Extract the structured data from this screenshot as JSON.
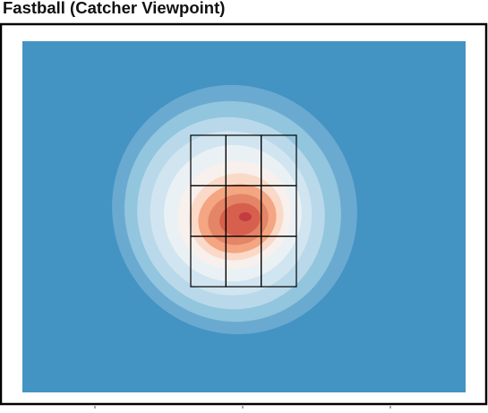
{
  "chart_data": {
    "type": "heatmap",
    "title": "Fastball (Catcher Viewpoint)",
    "subtitle": "",
    "xlabel": "",
    "ylabel": "",
    "legend": "none",
    "grid": false,
    "strike_zone": {
      "rows": 3,
      "cols": 3
    },
    "density_levels": 11,
    "peak": {
      "cell_row": 2,
      "cell_col": 2
    },
    "colors": {
      "background": "#4393c3",
      "levels": [
        "#4393c3",
        "#6aaad0",
        "#92c5de",
        "#b9d9ea",
        "#d1e5f0",
        "#eaf1f5",
        "#f7f0ec",
        "#fbd9c8",
        "#f4a582",
        "#e38566",
        "#d6604d",
        "#c33c3f"
      ],
      "frame": "#000000",
      "zone_lines": "#000000"
    }
  }
}
